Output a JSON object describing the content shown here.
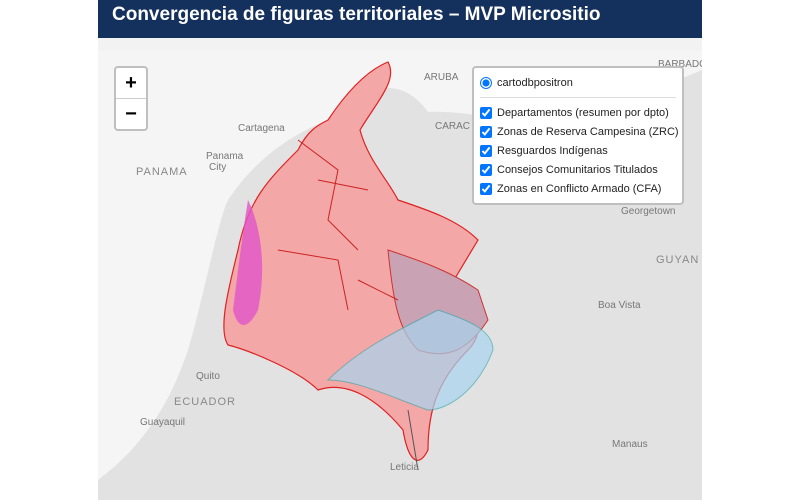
{
  "header": {
    "title": "Convergencia de figuras territoriales – MVP Micrositio"
  },
  "map": {
    "zoom_in": "+",
    "zoom_out": "−",
    "base_layer": "cartodbpositron",
    "overlays": [
      "Departamentos (resumen por dpto)",
      "Zonas de Reserva Campesina (ZRC)",
      "Resguardos Indígenas",
      "Consejos Comunitarios Titulados",
      "Zonas en Conflicto Armado (CFA)"
    ],
    "place_labels": [
      "ARUBA",
      "BARBADOS",
      "Cartagena",
      "CARAC",
      "Panama",
      "City",
      "PANAMA",
      "Georgetown",
      "GUYAN",
      "Boa Vista",
      "Quito",
      "ECUADOR",
      "Guayaquil",
      "Manaus",
      "Leticia"
    ]
  }
}
